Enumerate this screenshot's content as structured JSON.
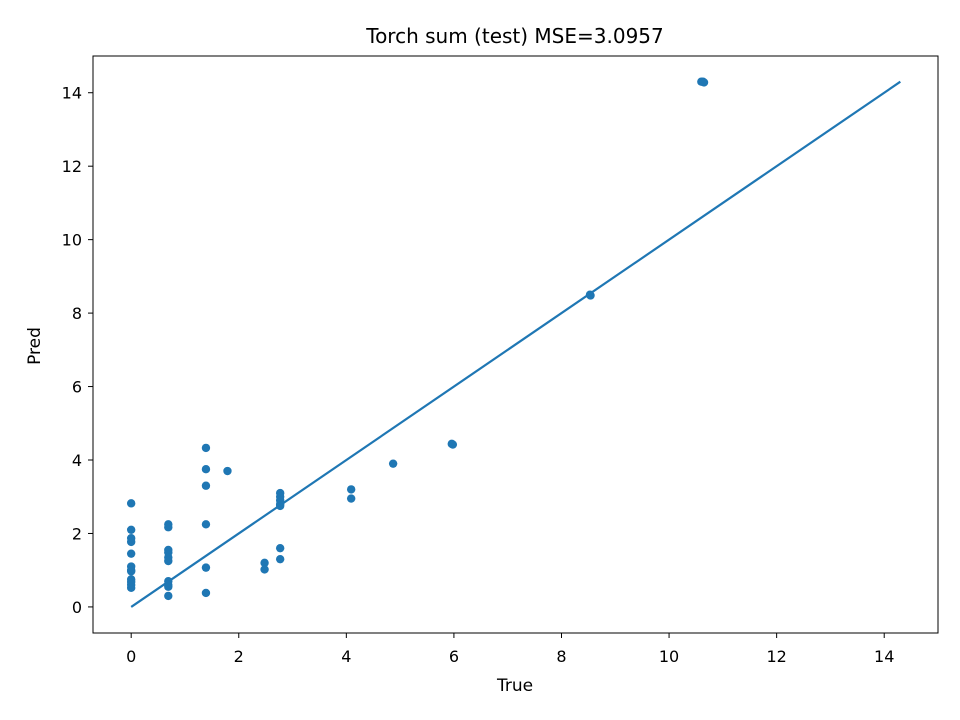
{
  "chart_data": {
    "type": "scatter",
    "title": "Torch sum (test) MSE=3.0957",
    "xlabel": "True",
    "ylabel": "Pred",
    "xlim": [
      -0.71,
      15.0
    ],
    "ylim": [
      -0.71,
      15.0
    ],
    "xticks": [
      0,
      2,
      4,
      6,
      8,
      10,
      12,
      14
    ],
    "yticks": [
      0,
      2,
      4,
      6,
      8,
      10,
      12,
      14
    ],
    "grid": false,
    "color": "#1f77b4",
    "series": [
      {
        "kind": "scatter",
        "points": [
          [
            0,
            2.82
          ],
          [
            0,
            2.1
          ],
          [
            0,
            1.87
          ],
          [
            0,
            1.77
          ],
          [
            0,
            1.45
          ],
          [
            0,
            1.1
          ],
          [
            0,
            1.0
          ],
          [
            0,
            0.97
          ],
          [
            0,
            0.75
          ],
          [
            0,
            0.68
          ],
          [
            0,
            0.6
          ],
          [
            0,
            0.52
          ],
          [
            0.69,
            2.25
          ],
          [
            0.69,
            2.17
          ],
          [
            0.69,
            1.55
          ],
          [
            0.69,
            1.48
          ],
          [
            0.69,
            1.35
          ],
          [
            0.69,
            1.25
          ],
          [
            0.69,
            0.7
          ],
          [
            0.69,
            0.6
          ],
          [
            0.69,
            0.55
          ],
          [
            0.69,
            0.3
          ],
          [
            1.39,
            4.33
          ],
          [
            1.39,
            3.75
          ],
          [
            1.39,
            3.3
          ],
          [
            1.39,
            2.25
          ],
          [
            1.39,
            1.07
          ],
          [
            1.39,
            0.38
          ],
          [
            1.79,
            3.7
          ],
          [
            2.48,
            1.2
          ],
          [
            2.48,
            1.02
          ],
          [
            2.77,
            3.1
          ],
          [
            2.77,
            3.0
          ],
          [
            2.77,
            2.9
          ],
          [
            2.77,
            2.8
          ],
          [
            2.77,
            2.75
          ],
          [
            2.77,
            1.6
          ],
          [
            2.77,
            1.3
          ],
          [
            4.09,
            3.2
          ],
          [
            4.09,
            2.95
          ],
          [
            4.87,
            3.9
          ],
          [
            5.96,
            4.44
          ],
          [
            5.98,
            4.42
          ],
          [
            8.53,
            8.5
          ],
          [
            8.54,
            8.48
          ],
          [
            10.6,
            14.3
          ],
          [
            10.63,
            14.3
          ],
          [
            10.65,
            14.28
          ]
        ]
      },
      {
        "kind": "line",
        "x": [
          0,
          14.3
        ],
        "y": [
          0,
          14.3
        ]
      }
    ]
  }
}
